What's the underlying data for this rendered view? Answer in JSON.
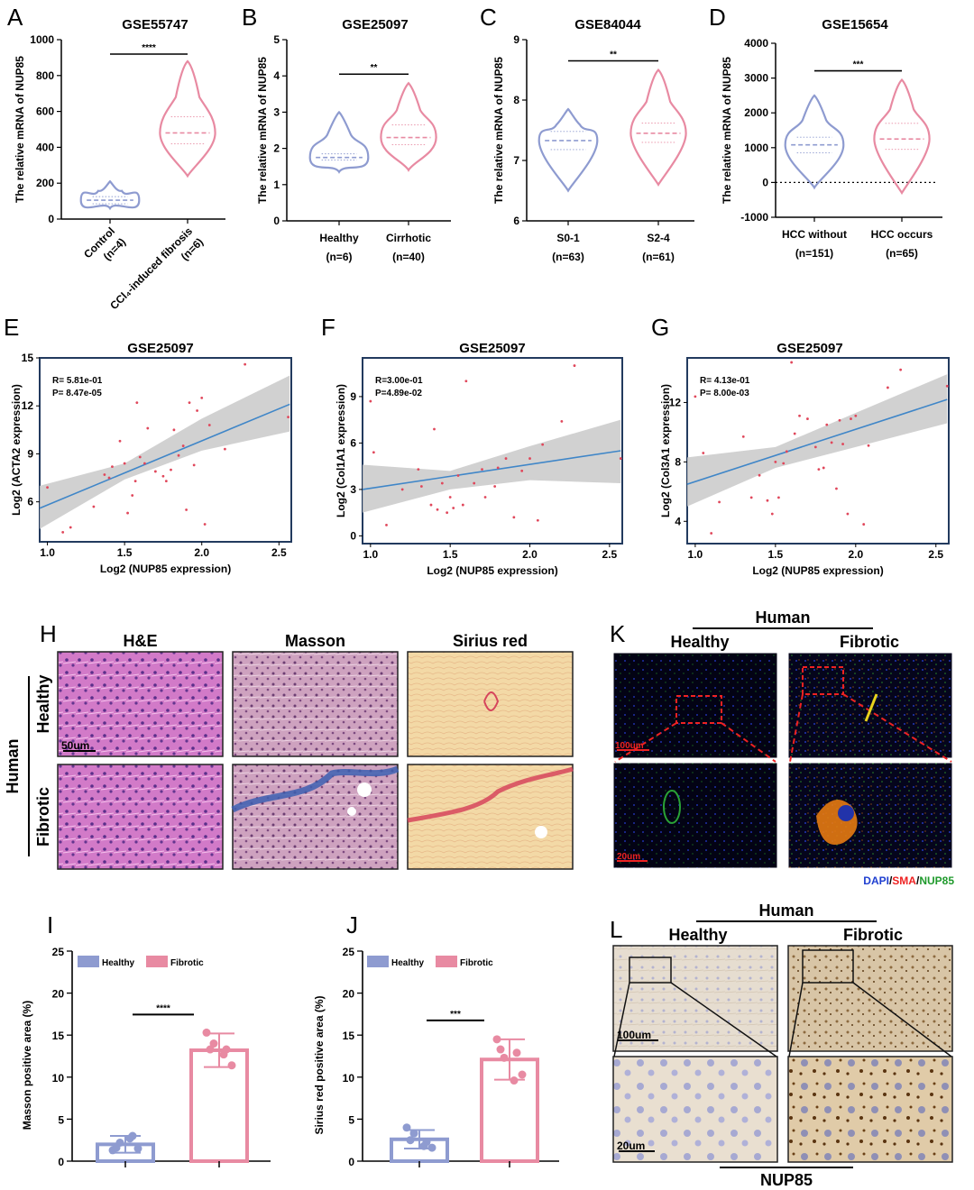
{
  "panels": {
    "violin": [
      {
        "letter": "A",
        "title": "GSE55747",
        "ylabel": "The relative mRNA of NUP85",
        "ylim": [
          0,
          1000
        ],
        "yticks": [
          "0",
          "200",
          "400",
          "600",
          "800",
          "1000"
        ],
        "groups": [
          {
            "label": "Control",
            "n": "(n=4)",
            "color": "#8e9bd0",
            "min": 60,
            "max": 210,
            "median": 105,
            "q1": 85,
            "q3": 125
          },
          {
            "label": "CCl₄-induced fibrosis",
            "n": "(n=6)",
            "color": "#e88aa2",
            "min": 240,
            "max": 880,
            "median": 480,
            "q1": 420,
            "q3": 570
          }
        ],
        "sig": "****",
        "rotated": true,
        "zero_line": false
      },
      {
        "letter": "B",
        "title": "GSE25097",
        "ylabel": "The relative mRNA of NUP85",
        "ylim": [
          0,
          5
        ],
        "yticks": [
          "0",
          "1",
          "2",
          "3",
          "4",
          "5"
        ],
        "groups": [
          {
            "label": "Healthy",
            "n": "(n=6)",
            "color": "#8e9bd0",
            "min": 1.35,
            "max": 3.0,
            "median": 1.75,
            "q1": 1.68,
            "q3": 1.85
          },
          {
            "label": "Cirrhotic",
            "n": "(n=40)",
            "color": "#e88aa2",
            "min": 1.4,
            "max": 3.8,
            "median": 2.3,
            "q1": 2.1,
            "q3": 2.65
          }
        ],
        "sig": "**",
        "rotated": false,
        "zero_line": false
      },
      {
        "letter": "C",
        "title": "GSE84044",
        "ylabel": "The relative mRNA of NUP85",
        "ylim": [
          6,
          9
        ],
        "yticks": [
          "6",
          "7",
          "8",
          "9"
        ],
        "groups": [
          {
            "label": "S0-1",
            "n": "(n=63)",
            "color": "#8e9bd0",
            "min": 6.5,
            "max": 7.85,
            "median": 7.33,
            "q1": 7.18,
            "q3": 7.48
          },
          {
            "label": "S2-4",
            "n": "(n=61)",
            "color": "#e88aa2",
            "min": 6.6,
            "max": 8.5,
            "median": 7.45,
            "q1": 7.3,
            "q3": 7.62
          }
        ],
        "sig": "**",
        "rotated": false,
        "zero_line": false
      },
      {
        "letter": "D",
        "title": "GSE15654",
        "ylabel": "The relative mRNA of NUP85",
        "ylim": [
          -1000,
          4000
        ],
        "yticks": [
          "-1000",
          "0",
          "1000",
          "2000",
          "3000",
          "4000"
        ],
        "groups": [
          {
            "label": "HCC without",
            "n": "(n=151)",
            "color": "#8e9bd0",
            "min": -150,
            "max": 2500,
            "median": 1080,
            "q1": 850,
            "q3": 1300
          },
          {
            "label": "HCC occurs",
            "n": "(n=65)",
            "color": "#e88aa2",
            "min": -300,
            "max": 2950,
            "median": 1250,
            "q1": 950,
            "q3": 1700
          }
        ],
        "sig": "***",
        "rotated": false,
        "zero_line": true
      }
    ],
    "scatter": [
      {
        "letter": "E",
        "title": "GSE25097",
        "ylabel": "Log2 (ACTA2 expression)",
        "xlabel": "Log2 (NUP85 expression)",
        "R": "R= 5.81e-01",
        "P": "P= 8.47e-05",
        "xlim": [
          0.95,
          2.58
        ],
        "ylim": [
          3.5,
          15
        ],
        "xticks": [
          1.0,
          1.5,
          2.0,
          2.5
        ],
        "yticks": [
          6,
          9,
          12,
          15
        ],
        "fit": [
          [
            0.95,
            5.6
          ],
          [
            2.57,
            12.1
          ]
        ],
        "band_lo": [
          [
            0.95,
            4.3
          ],
          [
            1.5,
            7.4
          ],
          [
            2.0,
            9.2
          ],
          [
            2.57,
            10.4
          ]
        ],
        "band_hi": [
          [
            0.95,
            7.0
          ],
          [
            1.5,
            8.4
          ],
          [
            2.0,
            11.2
          ],
          [
            2.57,
            13.9
          ]
        ],
        "points": [
          [
            1.0,
            6.9
          ],
          [
            1.1,
            4.1
          ],
          [
            1.15,
            4.4
          ],
          [
            1.3,
            5.7
          ],
          [
            1.37,
            7.7
          ],
          [
            1.4,
            7.5
          ],
          [
            1.42,
            8.2
          ],
          [
            1.47,
            9.8
          ],
          [
            1.5,
            8.4
          ],
          [
            1.52,
            5.3
          ],
          [
            1.55,
            6.4
          ],
          [
            1.57,
            7.3
          ],
          [
            1.58,
            12.2
          ],
          [
            1.6,
            8.8
          ],
          [
            1.63,
            8.4
          ],
          [
            1.65,
            10.6
          ],
          [
            1.7,
            7.9
          ],
          [
            1.75,
            7.6
          ],
          [
            1.77,
            7.3
          ],
          [
            1.8,
            8.0
          ],
          [
            1.82,
            10.5
          ],
          [
            1.85,
            8.9
          ],
          [
            1.88,
            9.5
          ],
          [
            1.9,
            5.5
          ],
          [
            1.92,
            12.2
          ],
          [
            1.95,
            8.3
          ],
          [
            1.97,
            11.7
          ],
          [
            2.0,
            12.5
          ],
          [
            2.02,
            4.6
          ],
          [
            2.05,
            10.8
          ],
          [
            2.15,
            9.3
          ],
          [
            2.28,
            14.6
          ],
          [
            2.56,
            11.3
          ]
        ]
      },
      {
        "letter": "F",
        "title": "GSE25097",
        "ylabel": "Log2 (Col1A1 expression)",
        "xlabel": "Log2 (NUP85 expression)",
        "R": "R=3.00e-01",
        "P": "P=4.89e-02",
        "xlim": [
          0.95,
          2.58
        ],
        "ylim": [
          -0.5,
          11.5
        ],
        "xticks": [
          1.0,
          1.5,
          2.0,
          2.5
        ],
        "yticks": [
          0,
          3,
          6,
          9
        ],
        "fit": [
          [
            0.95,
            3.0
          ],
          [
            2.57,
            5.5
          ]
        ],
        "band_lo": [
          [
            0.95,
            1.5
          ],
          [
            1.5,
            3.0
          ],
          [
            2.0,
            3.6
          ],
          [
            2.57,
            3.4
          ]
        ],
        "band_hi": [
          [
            0.95,
            4.6
          ],
          [
            1.5,
            4.2
          ],
          [
            2.0,
            5.8
          ],
          [
            2.57,
            7.5
          ]
        ],
        "points": [
          [
            1.0,
            8.7
          ],
          [
            1.02,
            5.4
          ],
          [
            1.1,
            0.7
          ],
          [
            1.2,
            3.0
          ],
          [
            1.3,
            4.3
          ],
          [
            1.32,
            3.2
          ],
          [
            1.38,
            2.0
          ],
          [
            1.4,
            6.9
          ],
          [
            1.42,
            1.7
          ],
          [
            1.45,
            3.4
          ],
          [
            1.48,
            1.5
          ],
          [
            1.5,
            2.5
          ],
          [
            1.52,
            1.8
          ],
          [
            1.55,
            3.9
          ],
          [
            1.58,
            2.0
          ],
          [
            1.6,
            10.0
          ],
          [
            1.65,
            3.4
          ],
          [
            1.7,
            4.3
          ],
          [
            1.72,
            2.5
          ],
          [
            1.78,
            3.2
          ],
          [
            1.8,
            4.4
          ],
          [
            1.85,
            5.0
          ],
          [
            1.9,
            1.2
          ],
          [
            1.95,
            4.2
          ],
          [
            2.0,
            5.0
          ],
          [
            2.05,
            1.0
          ],
          [
            2.08,
            5.9
          ],
          [
            2.2,
            7.4
          ],
          [
            2.28,
            11.0
          ],
          [
            2.57,
            5.0
          ]
        ]
      },
      {
        "letter": "G",
        "title": "GSE25097",
        "ylabel": "Log2 (Col3A1 expression)",
        "xlabel": "Log2 (NUP85 expression)",
        "R": "R= 4.13e-01",
        "P": "P= 8.00e-03",
        "xlim": [
          0.95,
          2.58
        ],
        "ylim": [
          2.5,
          15
        ],
        "xticks": [
          1.0,
          1.5,
          2.0,
          2.5
        ],
        "yticks": [
          4,
          8,
          12
        ],
        "fit": [
          [
            0.95,
            6.5
          ],
          [
            2.57,
            12.2
          ]
        ],
        "band_lo": [
          [
            0.95,
            5.0
          ],
          [
            1.5,
            7.6
          ],
          [
            2.0,
            9.0
          ],
          [
            2.57,
            10.6
          ]
        ],
        "band_hi": [
          [
            0.95,
            8.3
          ],
          [
            1.5,
            9.0
          ],
          [
            2.0,
            11.3
          ],
          [
            2.57,
            13.9
          ]
        ],
        "points": [
          [
            1.0,
            12.4
          ],
          [
            1.05,
            8.6
          ],
          [
            1.1,
            3.2
          ],
          [
            1.15,
            5.3
          ],
          [
            1.3,
            9.7
          ],
          [
            1.35,
            5.6
          ],
          [
            1.4,
            7.1
          ],
          [
            1.45,
            5.4
          ],
          [
            1.48,
            4.5
          ],
          [
            1.5,
            8.0
          ],
          [
            1.52,
            5.6
          ],
          [
            1.55,
            7.9
          ],
          [
            1.57,
            8.7
          ],
          [
            1.6,
            14.7
          ],
          [
            1.62,
            9.9
          ],
          [
            1.65,
            11.1
          ],
          [
            1.7,
            10.9
          ],
          [
            1.75,
            9.0
          ],
          [
            1.77,
            7.5
          ],
          [
            1.8,
            7.6
          ],
          [
            1.82,
            10.5
          ],
          [
            1.85,
            9.3
          ],
          [
            1.88,
            6.2
          ],
          [
            1.9,
            10.8
          ],
          [
            1.92,
            9.2
          ],
          [
            1.95,
            4.5
          ],
          [
            1.97,
            10.9
          ],
          [
            2.0,
            11.1
          ],
          [
            2.05,
            3.8
          ],
          [
            2.08,
            9.1
          ],
          [
            2.2,
            13.0
          ],
          [
            2.28,
            14.2
          ],
          [
            2.57,
            13.1
          ]
        ]
      }
    ],
    "bars": [
      {
        "letter": "I",
        "ylabel": "Masson positive area (%)",
        "ylim": [
          0,
          25
        ],
        "yticks": [
          "0",
          "5",
          "10",
          "15",
          "20",
          "25"
        ],
        "legend": [
          "Healthy",
          "Fibrotic"
        ],
        "sig": "****",
        "bars": [
          {
            "name": "Healthy",
            "mean": 2.0,
            "sd": 1.0,
            "color": "#8e9bd0",
            "points": [
              1.3,
              2.2,
              3.0,
              1.5,
              2.7,
              1.6
            ]
          },
          {
            "name": "Fibrotic",
            "mean": 13.2,
            "sd": 2.0,
            "color": "#e88aa2",
            "points": [
              15.3,
              14.0,
              13.3,
              11.4,
              12.7,
              13.3
            ]
          }
        ]
      },
      {
        "letter": "J",
        "ylabel": "Sirius red positive area (%)",
        "ylim": [
          0,
          25
        ],
        "yticks": [
          "0",
          "5",
          "10",
          "15",
          "20",
          "25"
        ],
        "legend": [
          "Healthy",
          "Fibrotic"
        ],
        "sig": "***",
        "bars": [
          {
            "name": "Healthy",
            "mean": 2.6,
            "sd": 1.1,
            "color": "#8e9bd0",
            "points": [
              4.0,
              3.3,
              2.3,
              1.6,
              1.8,
              2.5
            ]
          },
          {
            "name": "Fibrotic",
            "mean": 12.1,
            "sd": 2.4,
            "color": "#e88aa2",
            "points": [
              14.5,
              12.3,
              12.9,
              10.3,
              9.6,
              13.3
            ]
          }
        ]
      }
    ],
    "histology": {
      "letter": "H",
      "columns": [
        "H&E",
        "Masson",
        "Sirius red"
      ],
      "rows": [
        "Healthy",
        "Fibrotic"
      ],
      "side": "Human",
      "scale": "50um"
    },
    "if_panel": {
      "letter": "K",
      "group": "Human",
      "columns": [
        "Healthy",
        "Fibrotic"
      ],
      "scale_top": "100um",
      "scale_bottom": "20um",
      "legend": {
        "dapi": "DAPI",
        "sep1": "/",
        "sma": "SMA",
        "sep2": "/",
        "nup85": "NUP85"
      }
    },
    "ihc_panel": {
      "letter": "L",
      "group": "Human",
      "columns": [
        "Healthy",
        "Fibrotic"
      ],
      "scale_top": "100um",
      "scale_bottom": "20um",
      "marker": "NUP85"
    }
  }
}
